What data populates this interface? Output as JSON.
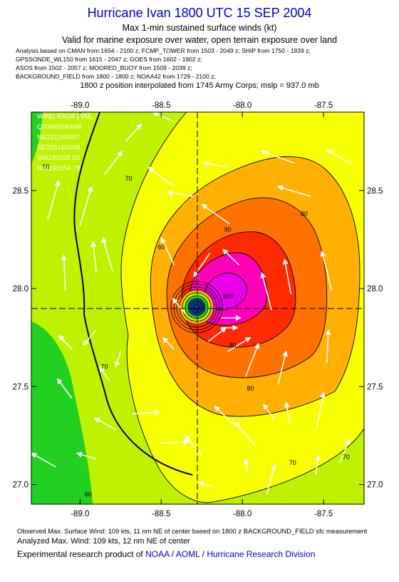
{
  "header": {
    "title": "Hurricane Ivan 1800 UTC 15 SEP 2004",
    "subtitle": "Max 1-min sustained surface winds (kt)",
    "validity": "Valid for marine exposure over water, open terrain exposure over land",
    "analysis_lines": [
      "Analysis based on  CMAN from 1654 - 2100 z;  FCMP_TOWER from 1503 - 2049 z;  SHIP from 1750 - 1839 z;",
      "GPSSONDE_WL150 from 1615 - 2047 z;  GOES from 1602 - 1902 z;",
      "ASOS from 1502 - 2057 z;  MOORED_BUOY from 1509 - 2039 z;",
      "BACKGROUND_FIELD from 1800 - 1800 z;  NOAA42 from 1729 - 2100 z;"
    ],
    "position_note": "1800 z position interpolated from 1745 Army Corps; mslp = 937.0 mb"
  },
  "wind_radii": {
    "lines": [
      "WIND RADII (NM)",
      "Q034K50K64K",
      "NE221159107",
      "SE225160109",
      "SW180105 50",
      "NW160104 78"
    ]
  },
  "footer": {
    "observed": "Observed Max. Surface Wind: 109 kts, 11 nm NE of center based on 1800 z BACKGROUND_FIELD sfc measurement",
    "analyzed": "Analyzed Max. Wind: 109 kts, 12 nm NE of center",
    "credit_prefix": "Experimental research product of ",
    "credit_org": "NOAA / AOML / Hurricane Research Division"
  },
  "colors": {
    "lt60": "#22d022",
    "c60_70": "#bff200",
    "c70_80": "#f7ff00",
    "c80_90": "#ffb000",
    "c90_100": "#ff7200",
    "c100_110": "#ff2a00",
    "c110_120": "#ff00b8",
    "c120p": "#e800e8",
    "eye": "#0a3a8f",
    "credit": "#0000cc"
  },
  "chart_data": {
    "type": "contour",
    "xlim": [
      -89.3,
      -87.25
    ],
    "ylim": [
      26.9,
      28.9
    ],
    "x_ticks": [
      -89.0,
      -88.5,
      -88.0,
      -87.5
    ],
    "y_ticks": [
      27.0,
      27.5,
      28.0,
      28.5
    ],
    "x_tick_labels": [
      "-89.0",
      "-88.5",
      "-88.0",
      "-87.5"
    ],
    "y_tick_labels": [
      "27.0",
      "27.5",
      "28.0",
      "28.5"
    ],
    "center": {
      "lon": -88.22,
      "lat": 27.91
    },
    "contour_levels": [
      60,
      70,
      80,
      90,
      100
    ],
    "contour_labels": [
      {
        "text": "60",
        "lon": -89.21,
        "lat": 28.61
      },
      {
        "text": "70",
        "lon": -88.7,
        "lat": 28.55
      },
      {
        "text": "60",
        "lon": -88.5,
        "lat": 28.2
      },
      {
        "text": "80",
        "lon": -87.62,
        "lat": 28.37
      },
      {
        "text": "90",
        "lon": -88.09,
        "lat": 28.29
      },
      {
        "text": "100",
        "lon": -88.09,
        "lat": 27.95
      },
      {
        "text": "90",
        "lon": -88.06,
        "lat": 27.7
      },
      {
        "text": "80",
        "lon": -87.95,
        "lat": 27.48
      },
      {
        "text": "70",
        "lon": -88.85,
        "lat": 27.59
      },
      {
        "text": "70",
        "lon": -87.69,
        "lat": 27.1
      },
      {
        "text": "70",
        "lon": -87.36,
        "lat": 27.13
      },
      {
        "text": "60",
        "lon": -88.95,
        "lat": 26.94
      }
    ],
    "wind_vectors": [
      [
        -89.2,
        28.35,
        -89.13,
        28.55
      ],
      [
        -89.0,
        28.32,
        -88.93,
        28.52
      ],
      [
        -88.85,
        28.58,
        -88.74,
        28.7
      ],
      [
        -88.72,
        28.75,
        -88.62,
        28.84
      ],
      [
        -88.42,
        28.52,
        -88.58,
        28.62
      ],
      [
        -88.42,
        28.85,
        -88.55,
        28.9
      ],
      [
        -88.08,
        28.62,
        -88.24,
        28.64
      ],
      [
        -87.68,
        28.64,
        -87.88,
        28.7
      ],
      [
        -87.32,
        28.63,
        -87.48,
        28.71
      ],
      [
        -87.58,
        28.47,
        -87.78,
        28.52
      ],
      [
        -88.3,
        28.47,
        -88.46,
        28.49
      ],
      [
        -88.08,
        28.33,
        -88.25,
        28.43
      ],
      [
        -88.42,
        28.12,
        -88.5,
        28.26
      ],
      [
        -88.8,
        28.09,
        -88.86,
        28.26
      ],
      [
        -88.9,
        28.08,
        -88.92,
        28.24
      ],
      [
        -89.09,
        27.99,
        -89.1,
        28.17
      ],
      [
        -87.45,
        27.99,
        -87.51,
        28.19
      ],
      [
        -87.82,
        27.89,
        -87.88,
        28.08
      ],
      [
        -87.7,
        27.97,
        -87.74,
        28.15
      ],
      [
        -88.2,
        28.18,
        -88.3,
        28.06
      ],
      [
        -88.02,
        28.12,
        -88.12,
        28.2
      ],
      [
        -88.35,
        27.87,
        -88.43,
        27.95
      ],
      [
        -88.13,
        27.85,
        -88.01,
        27.85
      ],
      [
        -88.13,
        27.8,
        -88.03,
        27.8
      ],
      [
        -88.21,
        27.73,
        -88.1,
        27.8
      ],
      [
        -88.42,
        27.69,
        -88.49,
        27.75
      ],
      [
        -88.09,
        27.68,
        -87.95,
        27.75
      ],
      [
        -87.98,
        27.55,
        -87.9,
        27.72
      ],
      [
        -87.78,
        27.51,
        -87.73,
        27.68
      ],
      [
        -87.48,
        27.62,
        -87.47,
        27.79
      ],
      [
        -88.9,
        27.79,
        -88.98,
        27.71
      ],
      [
        -89.05,
        27.69,
        -89.13,
        27.76
      ],
      [
        -89.05,
        27.44,
        -89.14,
        27.54
      ],
      [
        -88.75,
        27.68,
        -88.78,
        27.6
      ],
      [
        -88.82,
        27.53,
        -88.88,
        27.6
      ],
      [
        -88.68,
        27.36,
        -88.51,
        27.37
      ],
      [
        -88.78,
        27.28,
        -88.91,
        27.34
      ],
      [
        -88.5,
        27.21,
        -88.33,
        27.22
      ],
      [
        -88.9,
        27.13,
        -89.02,
        27.16
      ],
      [
        -89.15,
        27.09,
        -89.3,
        27.16
      ],
      [
        -88.06,
        27.31,
        -88.17,
        27.4
      ],
      [
        -87.97,
        27.07,
        -87.98,
        27.13
      ],
      [
        -88.25,
        27.15,
        -88.35,
        27.25
      ],
      [
        -87.92,
        27.2,
        -88.05,
        27.32
      ],
      [
        -87.8,
        27.33,
        -87.87,
        27.41
      ],
      [
        -87.71,
        27.31,
        -87.73,
        27.42
      ],
      [
        -87.54,
        27.29,
        -87.5,
        27.47
      ],
      [
        -87.4,
        27.11,
        -87.34,
        27.23
      ],
      [
        -88.18,
        26.99,
        -88.27,
        27.01
      ],
      [
        -87.85,
        26.95,
        -87.8,
        27.1
      ],
      [
        -87.55,
        27.05,
        -87.53,
        27.15
      ]
    ]
  }
}
